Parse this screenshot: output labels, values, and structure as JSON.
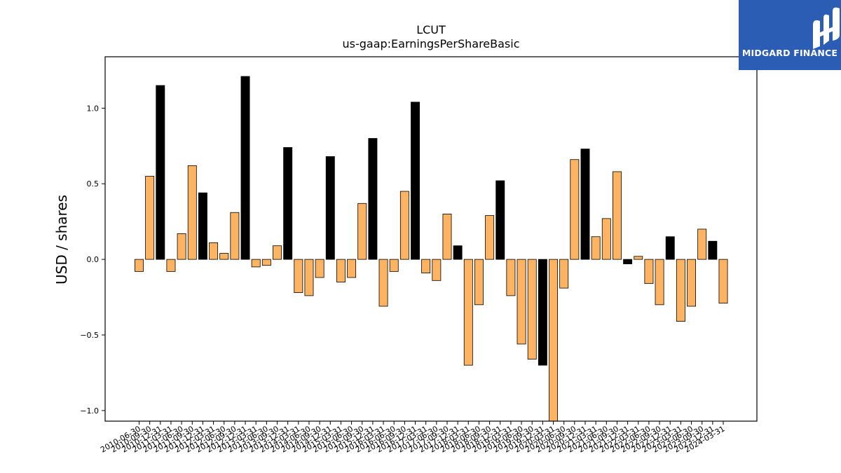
{
  "chart_data": {
    "type": "bar",
    "title": "LCUT",
    "subtitle": "us-gaap:EarningsPerShareBasic",
    "xlabel": "",
    "ylabel": "USD / shares",
    "ylim": [
      -1.07,
      1.34
    ],
    "yticks": [
      -1.0,
      -0.5,
      0.0,
      0.5,
      1.0
    ],
    "ytick_labels": [
      "−1.0",
      "−0.5",
      "0.0",
      "0.5",
      "1.0"
    ],
    "grid": false,
    "colors": {
      "quarterly": "#fdb462",
      "annual": "#000000",
      "edge": "#000000"
    },
    "categories": [
      "2010-06-30",
      "2010-09-30",
      "2010-12-31",
      "2011-03-31",
      "2011-06-30",
      "2011-09-30",
      "2011-12-31",
      "2012-03-31",
      "2012-06-30",
      "2012-09-30",
      "2012-12-31",
      "2013-03-31",
      "2013-06-30",
      "2013-09-30",
      "2013-12-31",
      "2014-03-31",
      "2014-06-30",
      "2014-09-30",
      "2014-12-31",
      "2015-03-31",
      "2015-06-30",
      "2015-09-30",
      "2015-12-31",
      "2016-03-31",
      "2016-06-30",
      "2016-09-30",
      "2016-12-31",
      "2017-03-31",
      "2017-06-30",
      "2017-09-30",
      "2017-12-31",
      "2018-03-31",
      "2018-06-30",
      "2018-09-30",
      "2018-12-31",
      "2019-03-31",
      "2019-06-30",
      "2019-09-30",
      "2019-12-31",
      "2020-03-31",
      "2020-06-30",
      "2020-09-30",
      "2020-12-31",
      "2021-03-31",
      "2021-06-30",
      "2021-09-30",
      "2021-12-31",
      "2022-03-31",
      "2022-06-30",
      "2022-09-30",
      "2022-12-31",
      "2023-03-31",
      "2023-06-30",
      "2023-09-30",
      "2023-12-31",
      "2024-03-31"
    ],
    "values": [
      -0.08,
      0.55,
      1.15,
      -0.08,
      0.17,
      0.62,
      0.44,
      0.11,
      0.04,
      0.31,
      1.21,
      -0.05,
      -0.04,
      0.09,
      0.74,
      -0.22,
      -0.24,
      -0.12,
      0.68,
      -0.15,
      -0.12,
      0.37,
      0.8,
      -0.31,
      -0.08,
      0.45,
      1.04,
      -0.09,
      -0.14,
      0.3,
      0.09,
      -0.7,
      -0.3,
      0.29,
      0.52,
      -0.24,
      -0.56,
      -0.66,
      -0.7,
      -1.07,
      -0.19,
      0.66,
      0.73,
      0.15,
      0.27,
      0.58,
      -0.03,
      0.02,
      -0.16,
      -0.3,
      0.15,
      -0.41,
      -0.31,
      0.2,
      0.12,
      -0.29
    ],
    "annual": [
      false,
      false,
      true,
      false,
      false,
      false,
      true,
      false,
      false,
      false,
      true,
      false,
      false,
      false,
      true,
      false,
      false,
      false,
      true,
      false,
      false,
      false,
      true,
      false,
      false,
      false,
      true,
      false,
      false,
      false,
      true,
      false,
      false,
      false,
      true,
      false,
      false,
      false,
      true,
      false,
      false,
      false,
      true,
      false,
      false,
      false,
      true,
      false,
      false,
      false,
      true,
      false,
      false,
      false,
      true,
      false
    ]
  },
  "logo": {
    "text": "MIDGARD FINANCE",
    "color": "#2b5db4"
  }
}
